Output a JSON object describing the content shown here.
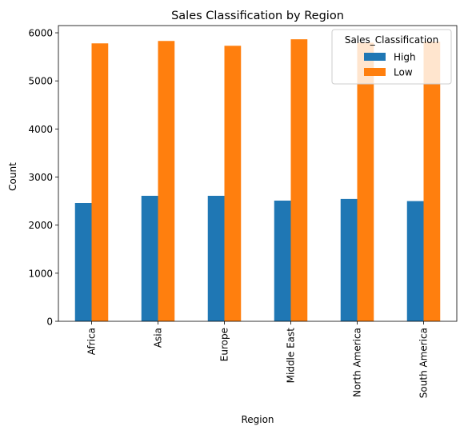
{
  "chart_data": {
    "type": "bar",
    "title": "Sales Classification by Region",
    "xlabel": "Region",
    "ylabel": "Count",
    "categories": [
      "Africa",
      "Asia",
      "Europe",
      "Middle East",
      "North America",
      "South America"
    ],
    "series": [
      {
        "name": "High",
        "color": "#1f77b4",
        "values": [
          2460,
          2610,
          2610,
          2510,
          2545,
          2500
        ]
      },
      {
        "name": "Low",
        "color": "#ff7f0e",
        "values": [
          5780,
          5830,
          5730,
          5865,
          5795,
          5815
        ]
      }
    ],
    "ylim": [
      0,
      6150
    ],
    "yticks": [
      0,
      1000,
      2000,
      3000,
      4000,
      5000,
      6000
    ],
    "grid": false,
    "legend": {
      "title": "Sales_Classification",
      "placement": "top-right"
    }
  }
}
